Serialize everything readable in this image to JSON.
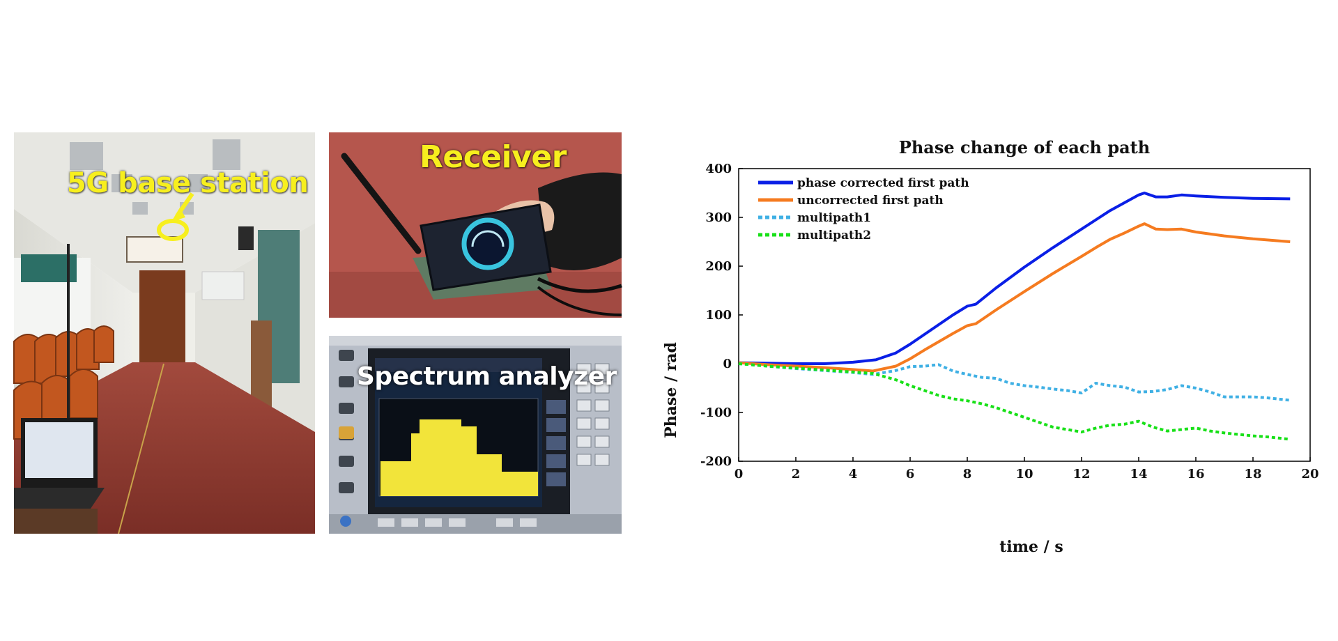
{
  "photos": {
    "hall_label": "5G base station",
    "receiver_label": "Receiver",
    "analyzer_label": "Spectrum analyzer"
  },
  "chart_data": {
    "type": "line",
    "title": "Phase change of each path",
    "xlabel": "time / s",
    "ylabel": "Phase / rad",
    "xlim": [
      0,
      20
    ],
    "ylim": [
      -200,
      400
    ],
    "xticks": [
      0,
      2,
      4,
      6,
      8,
      10,
      12,
      14,
      16,
      18,
      20
    ],
    "yticks": [
      -200,
      -100,
      0,
      100,
      200,
      300,
      400
    ],
    "grid": false,
    "legend_position": "top-left",
    "series": [
      {
        "name": "phase corrected first path",
        "color": "#0a1fe6",
        "style": "solid",
        "x": [
          0,
          1,
          2,
          3,
          4,
          4.8,
          5.5,
          6,
          6.5,
          7,
          7.5,
          8,
          8.3,
          9,
          10,
          11,
          12,
          12.5,
          13,
          13.5,
          14,
          14.2,
          14.6,
          15,
          15.5,
          16,
          17,
          18,
          19.3
        ],
        "y": [
          2,
          1,
          0,
          0,
          3,
          8,
          22,
          40,
          60,
          80,
          100,
          118,
          122,
          155,
          198,
          238,
          276,
          295,
          314,
          330,
          346,
          350,
          342,
          342,
          346,
          344,
          341,
          339,
          338
        ]
      },
      {
        "name": "uncorrected first path",
        "color": "#f57b20",
        "style": "solid",
        "x": [
          0,
          1,
          2,
          3,
          4,
          4.7,
          5.5,
          6,
          6.5,
          7,
          7.5,
          8,
          8.3,
          9,
          10,
          11,
          12,
          12.5,
          13,
          13.5,
          14,
          14.2,
          14.6,
          15,
          15.5,
          16,
          17,
          18,
          19.3
        ],
        "y": [
          2,
          -2,
          -5,
          -8,
          -12,
          -15,
          -5,
          10,
          28,
          45,
          62,
          78,
          82,
          110,
          148,
          185,
          220,
          238,
          255,
          268,
          282,
          287,
          276,
          275,
          276,
          270,
          262,
          256,
          250
        ]
      },
      {
        "name": "multipath1",
        "color": "#3fb0e4",
        "style": "dotted",
        "x": [
          0,
          1,
          2,
          3,
          4,
          4.7,
          5.5,
          6,
          6.5,
          7,
          7.5,
          8,
          8.5,
          9,
          9.5,
          10,
          10.5,
          11,
          11.5,
          12,
          12.5,
          13,
          13.5,
          14,
          14.5,
          15,
          15.5,
          16,
          16.5,
          17,
          17.5,
          18,
          18.5,
          19.3
        ],
        "y": [
          0,
          -5,
          -10,
          -14,
          -18,
          -22,
          -14,
          -6,
          -5,
          -2,
          -15,
          -22,
          -28,
          -30,
          -40,
          -45,
          -48,
          -52,
          -55,
          -60,
          -40,
          -45,
          -48,
          -58,
          -57,
          -53,
          -45,
          -50,
          -58,
          -68,
          -68,
          -68,
          -70,
          -75
        ]
      },
      {
        "name": "multipath2",
        "color": "#18e018",
        "style": "dotted",
        "x": [
          0,
          1,
          2,
          3,
          4,
          4.7,
          5.5,
          6,
          6.5,
          7,
          7.5,
          8,
          8.5,
          9,
          9.5,
          10,
          10.5,
          11,
          11.5,
          12,
          12.5,
          13,
          13.5,
          14,
          14.5,
          15,
          15.5,
          16,
          16.5,
          17,
          17.5,
          18,
          18.5,
          19.3
        ],
        "y": [
          0,
          -5,
          -9,
          -13,
          -17,
          -20,
          -33,
          -45,
          -55,
          -65,
          -72,
          -76,
          -82,
          -90,
          -100,
          -110,
          -120,
          -130,
          -135,
          -140,
          -132,
          -126,
          -124,
          -118,
          -130,
          -138,
          -135,
          -132,
          -138,
          -142,
          -145,
          -148,
          -150,
          -155
        ]
      }
    ]
  }
}
